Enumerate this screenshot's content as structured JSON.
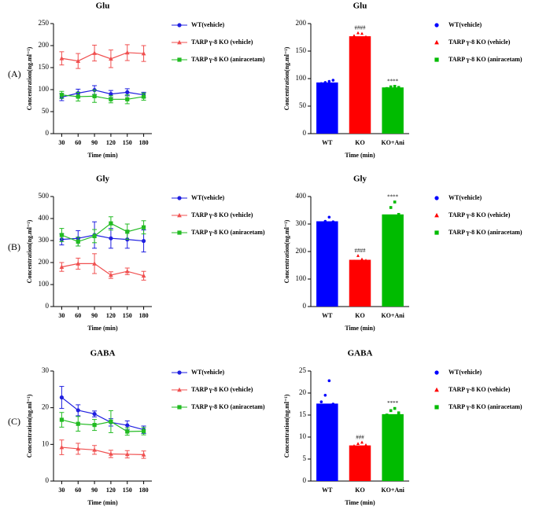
{
  "chart_data": [
    {
      "type": "line",
      "title": "Glu",
      "panel_label": "(A)",
      "xlabel": "Time (min)",
      "ylabel": "Concentration(ng.ml⁻¹)",
      "x": [
        30,
        60,
        90,
        120,
        150,
        180
      ],
      "xlim": [
        15,
        195
      ],
      "xticks": [
        30,
        60,
        90,
        120,
        150,
        180
      ],
      "ylim": [
        0,
        250
      ],
      "yticks": [
        0,
        50,
        100,
        150,
        200,
        250
      ],
      "series": [
        {
          "name": "WT(vehicle)",
          "color": "#1f1fe0",
          "marker": "circle",
          "values": [
            83,
            92,
            99,
            90,
            94,
            88
          ],
          "errors": [
            8,
            9,
            10,
            8,
            8,
            6
          ]
        },
        {
          "name": "TARP γ-8 KO (vehicle)",
          "color": "#f05050",
          "marker": "triangle",
          "values": [
            171,
            165,
            183,
            170,
            184,
            182
          ],
          "errors": [
            15,
            17,
            18,
            20,
            18,
            18
          ]
        },
        {
          "name": "TARP γ-8 KO (aniracetam)",
          "color": "#22bb22",
          "marker": "square",
          "values": [
            88,
            84,
            85,
            78,
            78,
            84
          ],
          "errors": [
            8,
            10,
            14,
            8,
            10,
            8
          ]
        }
      ]
    },
    {
      "type": "bar",
      "title": "Glu",
      "xlabel": "Time (min)",
      "ylabel": "Concentration(ng.ml⁻¹)",
      "categories": [
        "WT",
        "KO",
        "KO+Ani"
      ],
      "values": [
        93,
        177,
        84
      ],
      "colors": [
        "#0000ff",
        "#ff0000",
        "#00bb00"
      ],
      "markers": [
        "circle",
        "triangle",
        "square"
      ],
      "annotations": [
        null,
        "####",
        "****"
      ],
      "points": [
        [
          91,
          93,
          95,
          97
        ],
        [
          178,
          183,
          182,
          176
        ],
        [
          82,
          85,
          86,
          84
        ]
      ],
      "legend": [
        "WT(vehicle)",
        "TARP γ-8 KO (vehicle)",
        "TARP γ-8 KO (aniracetam)"
      ],
      "ylim": [
        0,
        200
      ],
      "yticks": [
        0,
        50,
        100,
        150,
        200
      ]
    },
    {
      "type": "line",
      "title": "Gly",
      "panel_label": "(B)",
      "xlabel": "Time (min)",
      "ylabel": "Concentration(ng.ml⁻¹)",
      "x": [
        30,
        60,
        90,
        120,
        150,
        180
      ],
      "xlim": [
        15,
        195
      ],
      "xticks": [
        30,
        60,
        90,
        120,
        150,
        180
      ],
      "ylim": [
        0,
        500
      ],
      "yticks": [
        0,
        100,
        200,
        300,
        400,
        500
      ],
      "series": [
        {
          "name": "WT(vehicle)",
          "color": "#1f1fe0",
          "marker": "circle",
          "values": [
            305,
            310,
            325,
            310,
            305,
            298
          ],
          "errors": [
            25,
            35,
            60,
            45,
            40,
            50
          ]
        },
        {
          "name": "TARP γ-8 KO (vehicle)",
          "color": "#f05050",
          "marker": "triangle",
          "values": [
            180,
            195,
            195,
            143,
            160,
            140
          ],
          "errors": [
            20,
            25,
            45,
            15,
            15,
            20
          ]
        },
        {
          "name": "TARP γ-8 KO (aniracetam)",
          "color": "#22bb22",
          "marker": "square",
          "values": [
            325,
            295,
            320,
            378,
            340,
            360
          ],
          "errors": [
            30,
            20,
            30,
            30,
            35,
            30
          ]
        }
      ]
    },
    {
      "type": "bar",
      "title": "Gly",
      "xlabel": "Time (min)",
      "ylabel": "Concentration(ng.ml⁻¹)",
      "categories": [
        "WT",
        "KO",
        "KO+Ani"
      ],
      "values": [
        310,
        170,
        335
      ],
      "colors": [
        "#0000ff",
        "#ff0000",
        "#00bb00"
      ],
      "markers": [
        "circle",
        "triangle",
        "square"
      ],
      "annotations": [
        null,
        "####",
        "****"
      ],
      "points": [
        [
          305,
          310,
          325,
          308
        ],
        [
          165,
          185,
          172,
          168
        ],
        [
          320,
          360,
          380,
          335
        ]
      ],
      "legend": [
        "WT(vehicle)",
        "TARP γ-8 KO (vehicle)",
        "TARP γ-8 KO (aniracetam)"
      ],
      "ylim": [
        0,
        400
      ],
      "yticks": [
        0,
        100,
        200,
        300,
        400
      ]
    },
    {
      "type": "line",
      "title": "GABA",
      "panel_label": "(C)",
      "xlabel": "Time (min)",
      "ylabel": "Concentration(ng.ml⁻¹)",
      "x": [
        30,
        60,
        90,
        120,
        150,
        180
      ],
      "xlim": [
        15,
        195
      ],
      "xticks": [
        30,
        60,
        90,
        120,
        150,
        180
      ],
      "ylim": [
        0,
        30
      ],
      "yticks": [
        0,
        10,
        20,
        30
      ],
      "series": [
        {
          "name": "WT(vehicle)",
          "color": "#1f1fe0",
          "marker": "circle",
          "values": [
            22.8,
            19.3,
            18.3,
            16,
            15.2,
            14
          ],
          "errors": [
            3,
            1.5,
            0.8,
            1,
            1.2,
            1
          ]
        },
        {
          "name": "TARP γ-8 KO (vehicle)",
          "color": "#f05050",
          "marker": "triangle",
          "values": [
            9.2,
            8.8,
            8.5,
            7.4,
            7.3,
            7.2
          ],
          "errors": [
            2,
            1.5,
            1.2,
            1,
            1,
            1
          ]
        },
        {
          "name": "TARP γ-8 KO (aniracetam)",
          "color": "#22bb22",
          "marker": "square",
          "values": [
            16.7,
            15.6,
            15.3,
            16.2,
            13.5,
            13.6
          ],
          "errors": [
            2,
            2,
            1.5,
            3,
            1,
            1
          ]
        }
      ]
    },
    {
      "type": "bar",
      "title": "GABA",
      "xlabel": "Time (min)",
      "ylabel": "Concentration(ng.ml⁻¹)",
      "categories": [
        "WT",
        "KO",
        "KO+Ani"
      ],
      "values": [
        17.6,
        8.1,
        15.2
      ],
      "colors": [
        "#0000ff",
        "#ff0000",
        "#00bb00"
      ],
      "markers": [
        "circle",
        "triangle",
        "square"
      ],
      "annotations": [
        null,
        "###",
        "****"
      ],
      "points": [
        [
          18,
          19.5,
          22.8,
          17.5
        ],
        [
          8,
          8.5,
          8.8,
          8.2
        ],
        [
          15,
          16,
          16.5,
          15.5
        ]
      ],
      "legend": [
        "WT(vehicle)",
        "TARP γ-8 KO (vehicle)",
        "TARP γ-8 KO (aniracetam)"
      ],
      "ylim": [
        0,
        25
      ],
      "yticks": [
        0,
        5,
        10,
        15,
        20,
        25
      ]
    }
  ]
}
